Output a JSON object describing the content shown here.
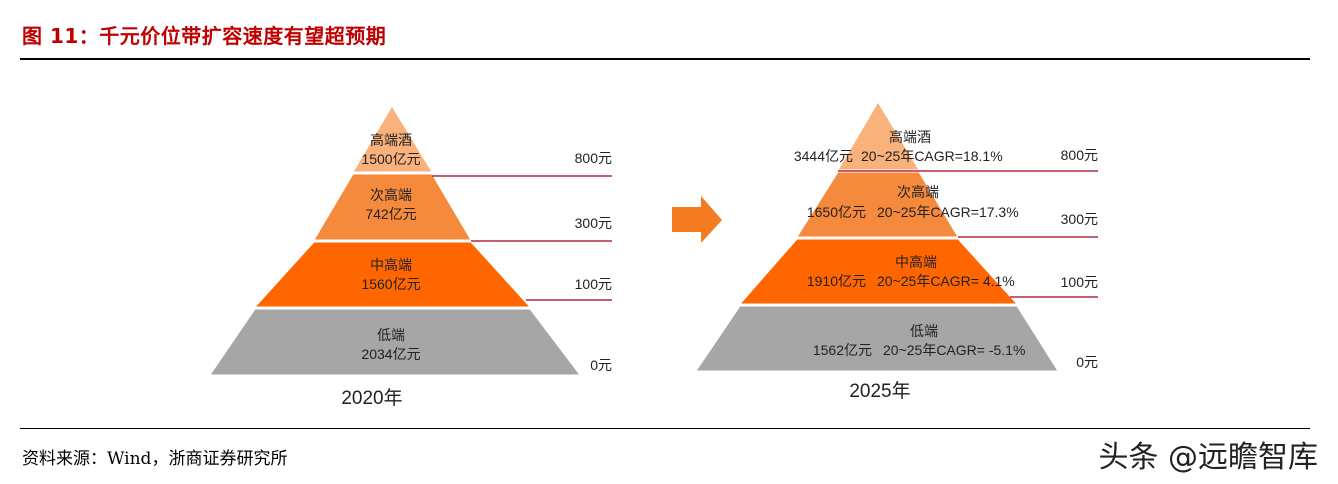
{
  "title": "图 11：千元价位带扩容速度有望超预期",
  "source": "资料来源：Wind，浙商证券研究所",
  "watermark": "头条 @远瞻智库",
  "colors": {
    "title": "#c00000",
    "tier_high": "#f9b27c",
    "tier_subhigh": "#f68a3c",
    "tier_mid": "#ff6600",
    "tier_low": "#a6a6a6",
    "threshold_line": "#a0001e",
    "arrow": "#f47b20"
  },
  "arrow_icon": "right-arrow-icon",
  "pyramids": [
    {
      "year": "2020年",
      "tiers": [
        {
          "name": "高端酒",
          "value": "1500亿元",
          "cagr": ""
        },
        {
          "name": "次高端",
          "value": "742亿元",
          "cagr": ""
        },
        {
          "name": "中高端",
          "value": "1560亿元",
          "cagr": ""
        },
        {
          "name": "低端",
          "value": "2034亿元",
          "cagr": ""
        }
      ],
      "thresholds": [
        "800元",
        "300元",
        "100元",
        "0元"
      ]
    },
    {
      "year": "2025年",
      "tiers": [
        {
          "name": "高端酒",
          "value": "3444亿元",
          "cagr": "20~25年CAGR=18.1%"
        },
        {
          "name": "次高端",
          "value": "1650亿元",
          "cagr": "20~25年CAGR=17.3%"
        },
        {
          "name": "中高端",
          "value": "1910亿元",
          "cagr": "20~25年CAGR= 4.1%"
        },
        {
          "name": "低端",
          "value": "1562亿元",
          "cagr": "20~25年CAGR= -5.1%"
        }
      ],
      "thresholds": [
        "800元",
        "300元",
        "100元",
        "0元"
      ]
    }
  ]
}
